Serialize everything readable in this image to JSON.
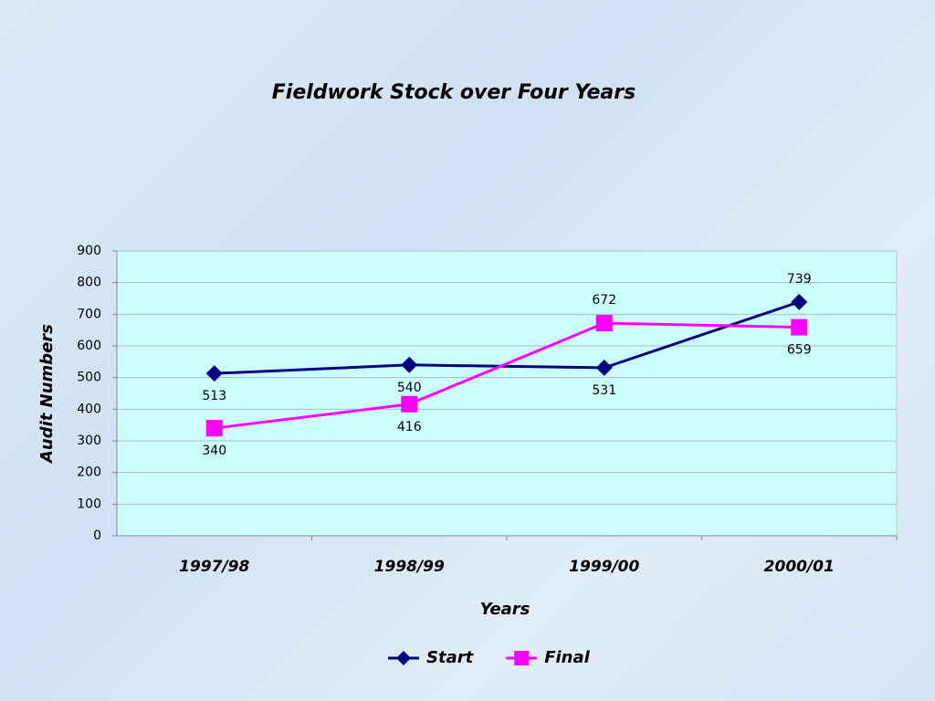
{
  "chart_data": {
    "type": "line",
    "title": "Fieldwork Stock over Four Years",
    "x_label": "Years",
    "y_label": "Audit Numbers",
    "categories": [
      "1997/98",
      "1998/99",
      "1999/00",
      "2000/01"
    ],
    "series": [
      {
        "name": "Start",
        "color": "#000080",
        "marker": "diamond",
        "values": [
          513,
          540,
          531,
          739
        ]
      },
      {
        "name": "Final",
        "color": "#ff00ff",
        "marker": "square",
        "values": [
          340,
          416,
          672,
          659
        ]
      }
    ],
    "ylim": [
      0,
      900
    ],
    "yticks": [
      0,
      100,
      200,
      300,
      400,
      500,
      600,
      700,
      800,
      900
    ],
    "grid": true,
    "legend": "bottom"
  }
}
